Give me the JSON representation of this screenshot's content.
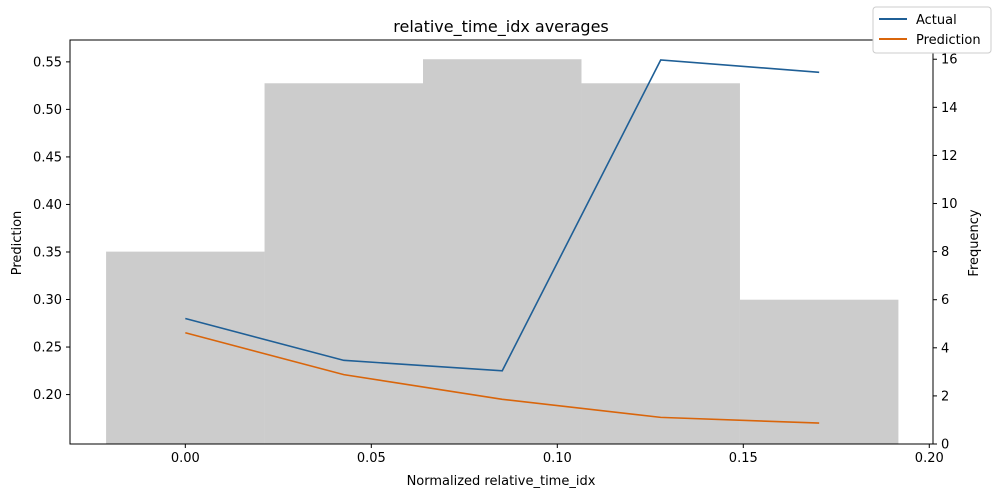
{
  "chart_data": {
    "type": "bar+line",
    "title": "relative_time_idx averages",
    "xlabel": "Normalized relative_time_idx",
    "ylabel_left": "Prediction",
    "ylabel_right": "Frequency",
    "xlim": [
      -0.031,
      0.201
    ],
    "ylim_left": [
      0.148,
      0.573
    ],
    "ylim_right": [
      0,
      16.8
    ],
    "x_ticks": [
      "0.00",
      "0.05",
      "0.10",
      "0.15",
      "0.20"
    ],
    "x_tick_values": [
      0.0,
      0.05,
      0.1,
      0.15,
      0.2
    ],
    "y_left_ticks": [
      "0.20",
      "0.25",
      "0.30",
      "0.35",
      "0.40",
      "0.45",
      "0.50",
      "0.55"
    ],
    "y_left_tick_values": [
      0.2,
      0.25,
      0.3,
      0.35,
      0.4,
      0.45,
      0.5,
      0.55
    ],
    "y_right_ticks": [
      "0",
      "2",
      "4",
      "6",
      "8",
      "10",
      "12",
      "14",
      "16"
    ],
    "y_right_tick_values": [
      0,
      2,
      4,
      6,
      8,
      10,
      12,
      14,
      16
    ],
    "histogram": {
      "color": "#cccccc",
      "bins": [
        {
          "x0": -0.0213,
          "x1": 0.0213,
          "count": 8
        },
        {
          "x0": 0.0213,
          "x1": 0.0639,
          "count": 15
        },
        {
          "x0": 0.0639,
          "x1": 0.1065,
          "count": 16
        },
        {
          "x0": 0.1065,
          "x1": 0.1491,
          "count": 15
        },
        {
          "x0": 0.1491,
          "x1": 0.1917,
          "count": 6
        }
      ]
    },
    "series": [
      {
        "name": "Actual",
        "color": "#1f5f96",
        "x": [
          0.0,
          0.0426,
          0.0852,
          0.1278,
          0.1704
        ],
        "values": [
          0.28,
          0.236,
          0.225,
          0.552,
          0.539
        ]
      },
      {
        "name": "Prediction",
        "color": "#d9650b",
        "x": [
          0.0,
          0.0426,
          0.0852,
          0.1278,
          0.1704
        ],
        "values": [
          0.265,
          0.221,
          0.195,
          0.176,
          0.17
        ]
      }
    ],
    "legend_position": "top-right",
    "grid": false
  }
}
